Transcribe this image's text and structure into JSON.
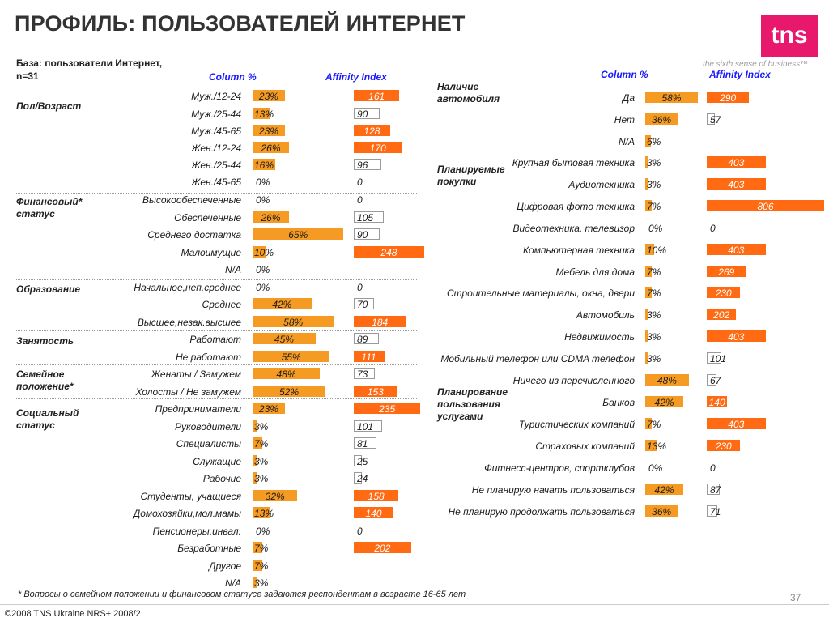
{
  "title": "ПРОФИЛЬ: ПОЛЬЗОВАТЕЛЕЙ ИНТЕРНЕТ",
  "logo": {
    "text": "tns",
    "slogan": "the sixth sense of business™",
    "color": "#e8186d"
  },
  "base": {
    "line1": "База: пользователи Интернет,",
    "line2": "n=31"
  },
  "headers": {
    "left_col": "Column %",
    "left_aff": "Affinity Index",
    "right_col": "Column %",
    "right_aff": "Affinity Index"
  },
  "colors": {
    "bar": "#f59a23",
    "affinity_high": "#ff6a13",
    "header": "#1a1aff"
  },
  "footnote": "* Вопросы о семейном положении и финансовом статусе задаются респондентам в возрасте 16-65 лет",
  "page_number": "37",
  "copyright": "©2008 TNS Ukraine  NRS+ 2008/2",
  "chart_data": [
    {
      "type": "bar",
      "panel": "left",
      "groups": [
        {
          "name": "Пол/Возраст",
          "rows": [
            {
              "label": "Муж./12-24",
              "pct": 23,
              "aff": 161
            },
            {
              "label": "Муж./25-44",
              "pct": 13,
              "aff": 90
            },
            {
              "label": "Муж./45-65",
              "pct": 23,
              "aff": 128
            },
            {
              "label": "Жен./12-24",
              "pct": 26,
              "aff": 170
            },
            {
              "label": "Жен./25-44",
              "pct": 16,
              "aff": 96
            },
            {
              "label": "Жен./45-65",
              "pct": 0,
              "aff": 0
            }
          ]
        },
        {
          "name": "Финансовый* статус",
          "rows": [
            {
              "label": "Высокообеспеченные",
              "pct": 0,
              "aff": 0
            },
            {
              "label": "Обеспеченные",
              "pct": 26,
              "aff": 105
            },
            {
              "label": "Среднего достатка",
              "pct": 65,
              "aff": 90
            },
            {
              "label": "Малоимущие",
              "pct": 10,
              "aff": 248
            },
            {
              "label": "N/A",
              "pct": 0,
              "aff": null
            }
          ]
        },
        {
          "name": "Образование",
          "rows": [
            {
              "label": "Начальное,неп.среднее",
              "pct": 0,
              "aff": 0
            },
            {
              "label": "Среднее",
              "pct": 42,
              "aff": 70
            },
            {
              "label": "Высшее,незак.высшее",
              "pct": 58,
              "aff": 184
            }
          ]
        },
        {
          "name": "Занятость",
          "rows": [
            {
              "label": "Работают",
              "pct": 45,
              "aff": 89
            },
            {
              "label": "Не работают",
              "pct": 55,
              "aff": 111
            }
          ]
        },
        {
          "name": "Семейное положение*",
          "rows": [
            {
              "label": "Женаты / Замужем",
              "pct": 48,
              "aff": 73
            },
            {
              "label": "Холосты / Не замужем",
              "pct": 52,
              "aff": 153
            }
          ]
        },
        {
          "name": "Социальный статус",
          "rows": [
            {
              "label": "Предприниматели",
              "pct": 23,
              "aff": 235
            },
            {
              "label": "Руководители",
              "pct": 3,
              "aff": 101
            },
            {
              "label": "Специалисты",
              "pct": 7,
              "aff": 81
            },
            {
              "label": "Служащие",
              "pct": 3,
              "aff": 25
            },
            {
              "label": "Рабочие",
              "pct": 3,
              "aff": 24
            },
            {
              "label": "Студенты, учащиеся",
              "pct": 32,
              "aff": 158
            },
            {
              "label": "Домохозяйки,мол.мамы",
              "pct": 13,
              "aff": 140
            },
            {
              "label": "Пенсионеры,инвал.",
              "pct": 0,
              "aff": 0
            },
            {
              "label": "Безработные",
              "pct": 7,
              "aff": 202
            },
            {
              "label": "Другое",
              "pct": 7,
              "aff": null
            },
            {
              "label": "N/A",
              "pct": 3,
              "aff": null
            }
          ]
        }
      ]
    },
    {
      "type": "bar",
      "panel": "right",
      "groups": [
        {
          "name": "Наличие автомобиля",
          "rows": [
            {
              "label": "Да",
              "pct": 58,
              "aff": 290
            },
            {
              "label": "Нет",
              "pct": 36,
              "aff": 57
            },
            {
              "label": "N/A",
              "pct": 6,
              "aff": null
            }
          ]
        },
        {
          "name": "Планируемые покупки",
          "rows": [
            {
              "label": "Крупная бытовая техника",
              "pct": 3,
              "aff": 403
            },
            {
              "label": "Аудиотехника",
              "pct": 3,
              "aff": 403
            },
            {
              "label": "Цифровая фото техника",
              "pct": 7,
              "aff": 806
            },
            {
              "label": "Видеотехника, телевизор",
              "pct": 0,
              "aff": 0
            },
            {
              "label": "Компьютерная техника",
              "pct": 10,
              "aff": 403
            },
            {
              "label": "Мебель для дома",
              "pct": 7,
              "aff": 269
            },
            {
              "label": "Строительные материалы, окна, двери",
              "pct": 7,
              "aff": 230
            },
            {
              "label": "Автомобиль",
              "pct": 3,
              "aff": 202
            },
            {
              "label": "Недвижимость",
              "pct": 3,
              "aff": 403
            },
            {
              "label": "Мобильный телефон или CDMA телефон",
              "pct": 3,
              "aff": 101
            },
            {
              "label": "Ничего из перечисленного",
              "pct": 48,
              "aff": 67
            }
          ]
        },
        {
          "name": "Планирование пользования услугами",
          "rows": [
            {
              "label": "Банков",
              "pct": 42,
              "aff": 140
            },
            {
              "label": "Туристических компаний",
              "pct": 7,
              "aff": 403
            },
            {
              "label": "Страховых компаний",
              "pct": 13,
              "aff": 230
            },
            {
              "label": "Фитнесс-центров, спортклубов",
              "pct": 0,
              "aff": 0
            },
            {
              "label": "Не планирую начать пользоваться",
              "pct": 42,
              "aff": 87
            },
            {
              "label": "Не планирую продолжать пользоваться",
              "pct": 36,
              "aff": 71
            }
          ]
        }
      ]
    }
  ]
}
